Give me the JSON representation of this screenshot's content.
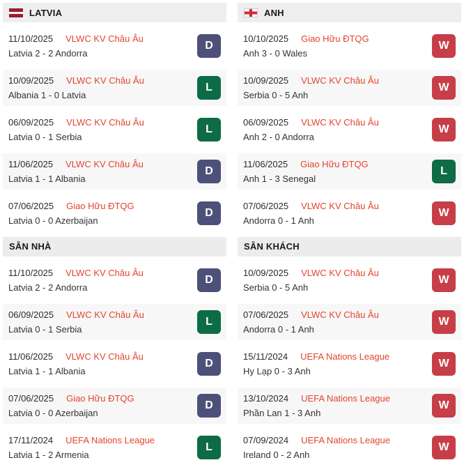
{
  "badge_colors": {
    "W": "#c73e48",
    "D": "#4d5078",
    "L": "#0d6b46"
  },
  "theme": {
    "competition_link_color": "#e2442d",
    "header_bg": "#eeeeee",
    "row_alt_bg": "#f7f7f7"
  },
  "columns": [
    {
      "team": "LATVIA",
      "flag": "latvia-flag",
      "sections": [
        {
          "header": null,
          "matches": [
            {
              "date": "11/10/2025",
              "competition": "VLWC KV Châu Âu",
              "score": "Latvia 2 - 2 Andorra",
              "result": "D"
            },
            {
              "date": "10/09/2025",
              "competition": "VLWC KV Châu Âu",
              "score": "Albania 1 - 0 Latvia",
              "result": "L"
            },
            {
              "date": "06/09/2025",
              "competition": "VLWC KV Châu Âu",
              "score": "Latvia 0 - 1 Serbia",
              "result": "L"
            },
            {
              "date": "11/06/2025",
              "competition": "VLWC KV Châu Âu",
              "score": "Latvia 1 - 1 Albania",
              "result": "D"
            },
            {
              "date": "07/06/2025",
              "competition": "Giao Hữu ĐTQG",
              "score": "Latvia 0 - 0 Azerbaijan",
              "result": "D"
            }
          ]
        },
        {
          "header": "SÂN NHÀ",
          "matches": [
            {
              "date": "11/10/2025",
              "competition": "VLWC KV Châu Âu",
              "score": "Latvia 2 - 2 Andorra",
              "result": "D"
            },
            {
              "date": "06/09/2025",
              "competition": "VLWC KV Châu Âu",
              "score": "Latvia 0 - 1 Serbia",
              "result": "L"
            },
            {
              "date": "11/06/2025",
              "competition": "VLWC KV Châu Âu",
              "score": "Latvia 1 - 1 Albania",
              "result": "D"
            },
            {
              "date": "07/06/2025",
              "competition": "Giao Hữu ĐTQG",
              "score": "Latvia 0 - 0 Azerbaijan",
              "result": "D"
            },
            {
              "date": "17/11/2024",
              "competition": "UEFA Nations League",
              "score": "Latvia 1 - 2 Armenia",
              "result": "L"
            }
          ]
        }
      ]
    },
    {
      "team": "ANH",
      "flag": "england-flag",
      "sections": [
        {
          "header": null,
          "matches": [
            {
              "date": "10/10/2025",
              "competition": "Giao Hữu ĐTQG",
              "score": "Anh 3 - 0 Wales",
              "result": "W"
            },
            {
              "date": "10/09/2025",
              "competition": "VLWC KV Châu Âu",
              "score": "Serbia 0 - 5 Anh",
              "result": "W"
            },
            {
              "date": "06/09/2025",
              "competition": "VLWC KV Châu Âu",
              "score": "Anh 2 - 0 Andorra",
              "result": "W"
            },
            {
              "date": "11/06/2025",
              "competition": "Giao Hữu ĐTQG",
              "score": "Anh 1 - 3 Senegal",
              "result": "L"
            },
            {
              "date": "07/06/2025",
              "competition": "VLWC KV Châu Âu",
              "score": "Andorra 0 - 1 Anh",
              "result": "W"
            }
          ]
        },
        {
          "header": "SÂN KHÁCH",
          "matches": [
            {
              "date": "10/09/2025",
              "competition": "VLWC KV Châu Âu",
              "score": "Serbia 0 - 5 Anh",
              "result": "W"
            },
            {
              "date": "07/06/2025",
              "competition": "VLWC KV Châu Âu",
              "score": "Andorra 0 - 1 Anh",
              "result": "W"
            },
            {
              "date": "15/11/2024",
              "competition": "UEFA Nations League",
              "score": "Hy Lạp 0 - 3 Anh",
              "result": "W"
            },
            {
              "date": "13/10/2024",
              "competition": "UEFA Nations League",
              "score": "Phần Lan 1 - 3 Anh",
              "result": "W"
            },
            {
              "date": "07/09/2024",
              "competition": "UEFA Nations League",
              "score": "Ireland 0 - 2 Anh",
              "result": "W"
            }
          ]
        }
      ]
    }
  ]
}
